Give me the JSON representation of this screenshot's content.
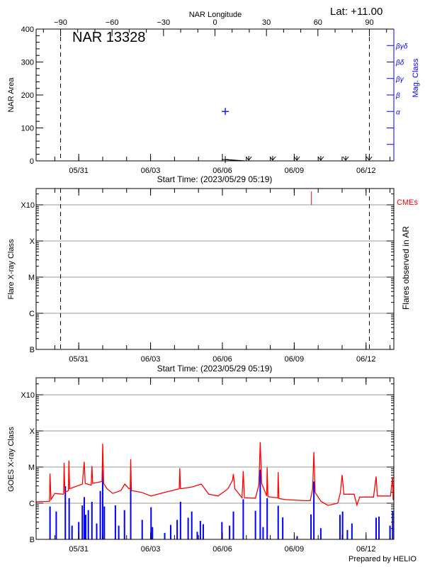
{
  "header": {
    "region_title": "NAR 13328",
    "latitude": "Lat: +11.00",
    "top_axis_label": "NAR Longitude"
  },
  "footer": {
    "credit": "Prepared by HELIO"
  },
  "colors": {
    "axis": "#000000",
    "mag_class": "#0000ff",
    "goes_long": "#ff0000",
    "goes_short": "#0000ff",
    "cme": "#ff0000",
    "grid": "#999999"
  },
  "chart_data": [
    {
      "type": "line",
      "panel": "nar-area",
      "xlabel": "Start Time: (2023/05/29 05:19)",
      "ylabel": "NAR Area",
      "right_label": "Mag. Class",
      "top_label": "NAR Longitude",
      "x_unit": "days since start",
      "xlim": [
        0,
        14.94
      ],
      "ylim": [
        0,
        400
      ],
      "y_ticks": [
        "0",
        "100",
        "200",
        "300",
        "400"
      ],
      "x_ticks": [
        {
          "day": 1.78,
          "label": "05/31"
        },
        {
          "day": 4.78,
          "label": "06/03"
        },
        {
          "day": 7.78,
          "label": "06/06"
        },
        {
          "day": 10.78,
          "label": "06/09"
        },
        {
          "day": 13.78,
          "label": "06/12"
        }
      ],
      "longitude_ticks": [
        "-90",
        "-60",
        "-30",
        "0",
        "30",
        "60",
        "90"
      ],
      "limb_longitudes": [
        -90,
        90
      ],
      "mag_class_ticks": [
        "",
        "",
        "α",
        "β",
        "βγ",
        "βδ",
        "βγδ"
      ],
      "area_series": [
        [
          7.9,
          4
        ],
        [
          8.7,
          0
        ]
      ],
      "missing_markers": [
        8.88,
        9.88,
        10.89,
        11.89,
        12.93,
        13.91
      ],
      "mag_class_points": [
        {
          "day": 7.9,
          "class": "α"
        }
      ],
      "grid": false
    },
    {
      "type": "bar",
      "panel": "flares",
      "xlabel": "Start Time: (2023/05/29 05:19)",
      "ylabel": "Flare X-ray Class",
      "right_label": "Flares observed in AR",
      "cme_label": "CMEs",
      "y_scale": "log",
      "y_ticks": [
        "B",
        "C",
        "M",
        "X",
        "X10"
      ],
      "cme_days": [
        11.5
      ],
      "flares": [],
      "grid": true
    },
    {
      "type": "line",
      "panel": "goes",
      "ylabel": "GOES X-ray Class",
      "y_scale": "log",
      "y_ticks": [
        "B",
        "C",
        "M",
        "X",
        "X10"
      ],
      "grid": true,
      "series": [
        {
          "color": "#ff0000",
          "style": "line",
          "values": [
            [
              0,
              -5.96
            ],
            [
              0.5,
              -5.95
            ],
            [
              0.56,
              -5.95
            ],
            [
              0.58,
              -5.18
            ],
            [
              0.62,
              -5.9
            ],
            [
              0.78,
              -5.73
            ],
            [
              1.13,
              -5.75
            ],
            [
              1.15,
              -5.73
            ],
            [
              1.17,
              -4.88
            ],
            [
              1.2,
              -5.7
            ],
            [
              1.35,
              -5.65
            ],
            [
              1.37,
              -4.82
            ],
            [
              1.4,
              -5.6
            ],
            [
              1.93,
              -5.47
            ],
            [
              2.01,
              -4.85
            ],
            [
              2.05,
              -5.45
            ],
            [
              2.3,
              -5.5
            ],
            [
              2.33,
              -4.97
            ],
            [
              2.36,
              -5.45
            ],
            [
              2.75,
              -5.4
            ],
            [
              2.78,
              -4.35
            ],
            [
              2.82,
              -5.45
            ],
            [
              2.96,
              -5.6
            ],
            [
              3.2,
              -5.73
            ],
            [
              3.54,
              -5.65
            ],
            [
              3.7,
              -5.47
            ],
            [
              3.88,
              -5.6
            ],
            [
              3.93,
              -5.6
            ],
            [
              3.95,
              -4.78
            ],
            [
              3.98,
              -5.65
            ],
            [
              4.4,
              -5.7
            ],
            [
              4.8,
              -5.8
            ],
            [
              5.37,
              -5.7
            ],
            [
              5.98,
              -5.6
            ],
            [
              6.0,
              -5.03
            ],
            [
              6.03,
              -5.6
            ],
            [
              6.52,
              -5.55
            ],
            [
              6.9,
              -5.47
            ],
            [
              7.21,
              -5.75
            ],
            [
              7.6,
              -5.8
            ],
            [
              8.01,
              -5.6
            ],
            [
              8.2,
              -5.37
            ],
            [
              8.24,
              -5.19
            ],
            [
              8.3,
              -5.6
            ],
            [
              8.6,
              -5.85
            ],
            [
              8.65,
              -5.11
            ],
            [
              8.7,
              -5.85
            ],
            [
              9.16,
              -5.86
            ],
            [
              9.3,
              -5.5
            ],
            [
              9.36,
              -4.31
            ],
            [
              9.42,
              -5.45
            ],
            [
              9.63,
              -5.8
            ],
            [
              9.65,
              -5.01
            ],
            [
              9.68,
              -5.82
            ],
            [
              10.09,
              -5.85
            ],
            [
              10.11,
              -5.14
            ],
            [
              10.14,
              -5.87
            ],
            [
              10.42,
              -5.9
            ],
            [
              11.2,
              -5.93
            ],
            [
              11.45,
              -5.93
            ],
            [
              11.55,
              -5.6
            ],
            [
              11.6,
              -4.58
            ],
            [
              11.65,
              -5.7
            ],
            [
              11.9,
              -5.95
            ],
            [
              12.19,
              -6.06
            ],
            [
              12.6,
              -6.0
            ],
            [
              12.71,
              -5.7
            ],
            [
              12.78,
              -5.22
            ],
            [
              12.85,
              -5.75
            ],
            [
              13.28,
              -5.75
            ],
            [
              13.4,
              -6.05
            ],
            [
              13.51,
              -5.83
            ],
            [
              14.09,
              -5.83
            ],
            [
              14.2,
              -5.26
            ],
            [
              14.25,
              -5.8
            ],
            [
              14.8,
              -5.8
            ],
            [
              14.89,
              -5.27
            ],
            [
              14.91,
              -5.9
            ],
            [
              14.94,
              -5.92
            ]
          ]
        },
        {
          "color": "#0000ff",
          "style": "spikes",
          "values": [
            [
              0.58,
              -6.09
            ],
            [
              0.84,
              -6.23
            ],
            [
              1.22,
              -5.53
            ],
            [
              1.38,
              -5.86
            ],
            [
              1.5,
              -6.62
            ],
            [
              1.78,
              -6.52
            ],
            [
              1.93,
              -6.06
            ],
            [
              2.01,
              -5.83
            ],
            [
              2.07,
              -6.32
            ],
            [
              2.18,
              -6.19
            ],
            [
              2.33,
              -5.96
            ],
            [
              2.53,
              -6.56
            ],
            [
              2.68,
              -5.66
            ],
            [
              2.78,
              -5.07
            ],
            [
              2.85,
              -6.09
            ],
            [
              3.31,
              -6.06
            ],
            [
              3.45,
              -6.62
            ],
            [
              3.69,
              -6.19
            ],
            [
              3.95,
              -5.43
            ],
            [
              4.43,
              -6.46
            ],
            [
              4.8,
              -6.11
            ],
            [
              4.86,
              -6.66
            ],
            [
              5.37,
              -6.82
            ],
            [
              5.62,
              -6.6
            ],
            [
              5.89,
              -6.46
            ],
            [
              6.03,
              -5.96
            ],
            [
              6.35,
              -6.4
            ],
            [
              6.5,
              -6.23
            ],
            [
              6.73,
              -6.79
            ],
            [
              6.86,
              -6.49
            ],
            [
              6.98,
              -6.58
            ],
            [
              7.76,
              -6.52
            ],
            [
              8.08,
              -6.62
            ],
            [
              8.24,
              -6.23
            ],
            [
              8.65,
              -5.89
            ],
            [
              9.16,
              -6.21
            ],
            [
              9.36,
              -5.07
            ],
            [
              9.48,
              -6.66
            ],
            [
              9.65,
              -5.86
            ],
            [
              10.11,
              -6.07
            ],
            [
              10.3,
              -6.39
            ],
            [
              10.9,
              -6.91
            ],
            [
              11.48,
              -6.31
            ],
            [
              11.6,
              -5.4
            ],
            [
              11.89,
              -6.69
            ],
            [
              12.69,
              -6.32
            ],
            [
              12.8,
              -6.23
            ],
            [
              13.0,
              -6.74
            ],
            [
              13.19,
              -6.56
            ],
            [
              14.2,
              -6.4
            ],
            [
              14.32,
              -6.37
            ],
            [
              14.78,
              -6.62
            ],
            [
              14.89,
              -6.23
            ]
          ]
        }
      ]
    }
  ]
}
